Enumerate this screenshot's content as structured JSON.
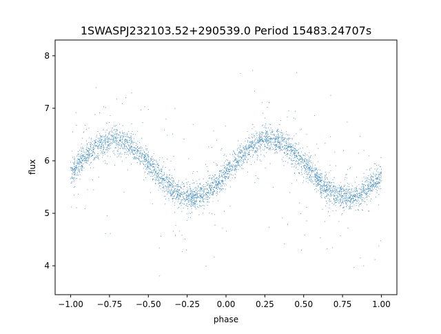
{
  "chart_data": {
    "type": "scatter",
    "title": "1SWASPJ232103.52+290539.0 Period 15483.24707s",
    "xlabel": "phase",
    "ylabel": "flux",
    "xlim": [
      -1.1,
      1.1
    ],
    "ylim": [
      3.45,
      8.3
    ],
    "xticks": [
      -1.0,
      -0.75,
      -0.5,
      -0.25,
      0.0,
      0.25,
      0.5,
      0.75,
      1.0
    ],
    "xtick_labels": [
      "−1.00",
      "−0.75",
      "−0.50",
      "−0.25",
      "0.00",
      "0.25",
      "0.50",
      "0.75",
      "1.00"
    ],
    "yticks": [
      4,
      5,
      6,
      7,
      8
    ],
    "ytick_labels": [
      "4",
      "5",
      "6",
      "7",
      "8"
    ],
    "grid": false,
    "point_color": "#1f77b4",
    "trend": {
      "description": "sinusoidal folded light curve, two cycles over phase -1 to 1",
      "mean_flux": 5.85,
      "amplitude": 0.55,
      "maxima_phase": [
        -0.72,
        0.28
      ],
      "minima_phase": [
        -0.22,
        0.78
      ],
      "scatter": 0.12
    },
    "sample_points": [
      {
        "x": -1.0,
        "y": 5.85
      },
      {
        "x": -0.75,
        "y": 6.38
      },
      {
        "x": -0.5,
        "y": 5.95
      },
      {
        "x": -0.25,
        "y": 5.32
      },
      {
        "x": 0.0,
        "y": 5.8
      },
      {
        "x": 0.25,
        "y": 6.38
      },
      {
        "x": 0.5,
        "y": 5.95
      },
      {
        "x": 0.75,
        "y": 5.32
      },
      {
        "x": 1.0,
        "y": 5.75
      }
    ]
  }
}
